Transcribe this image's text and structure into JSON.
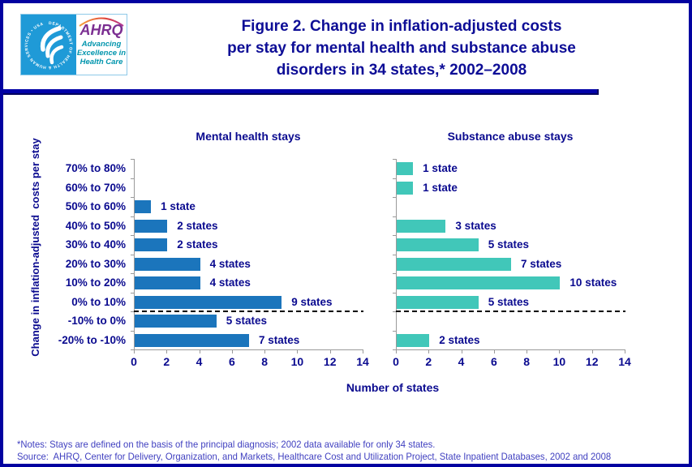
{
  "header": {
    "logo": {
      "seal_text": "DEPARTMENT OF HEALTH & HUMAN SERVICES • USA",
      "ahrq": "AHRQ",
      "tagline_lines": [
        "Advancing",
        "Excellence in",
        "Health Care"
      ]
    },
    "title_lines": [
      "Figure 2. Change in inflation-adjusted costs",
      "per stay for mental health and substance abuse",
      "disorders in 34 states,* 2002–2008"
    ]
  },
  "chart_data": {
    "type": "bar",
    "orientation": "horizontal",
    "categories": [
      "70% to 80%",
      "60% to 70%",
      "50% to 60%",
      "40% to 50%",
      "30% to 40%",
      "20% to 30%",
      "10% to 20%",
      "0% to 10%",
      "-10% to 0%",
      "-20% to -10%"
    ],
    "series": [
      {
        "name": "Mental health stays",
        "color": "#1b75bc",
        "values": [
          null,
          null,
          1,
          2,
          2,
          4,
          4,
          9,
          5,
          7
        ],
        "value_labels": [
          null,
          null,
          "1 state",
          "2 states",
          "2 states",
          "4 states",
          "4 states",
          "9 states",
          "5 states",
          "7 states"
        ]
      },
      {
        "name": "Substance abuse stays",
        "color": "#41c7b9",
        "values": [
          1,
          1,
          null,
          3,
          5,
          7,
          10,
          5,
          null,
          2
        ],
        "value_labels": [
          "1 state",
          "1 state",
          null,
          "3 states",
          "5 states",
          "7 states",
          "10 states",
          "5 states",
          null,
          "2 states"
        ]
      }
    ],
    "xlabel": "Number of states",
    "ylabel": "Change in inflation-adjusted  costs per stay",
    "xlim": [
      0,
      14
    ],
    "xticks": [
      0,
      2,
      4,
      6,
      8,
      10,
      12,
      14
    ],
    "zero_divider": {
      "after_category": "0% to 10%",
      "style": "dashed"
    },
    "grid": false,
    "legend": "none"
  },
  "footnotes": {
    "notes": "*Notes: Stays are defined on the basis of the principal diagnosis; 2002 data available for only 34 states.",
    "source": "Source:  AHRQ, Center for Delivery, Organization, and Markets, Healthcare Cost and Utilization Project, State Inpatient Databases, 2002 and 2008"
  },
  "colors": {
    "page_border": "#0202a0",
    "title_text": "#0d0d96",
    "chart_text": "#0a0a8f",
    "mental_health_bar": "#1b75bc",
    "substance_abuse_bar": "#41c7b9",
    "axis": "#9a9a9a",
    "notes_text": "#4040c0",
    "hhs_seal_blue": "#1f9ad7",
    "ahrq_purple": "#7b2f92",
    "ahrq_teal": "#0095ad"
  }
}
